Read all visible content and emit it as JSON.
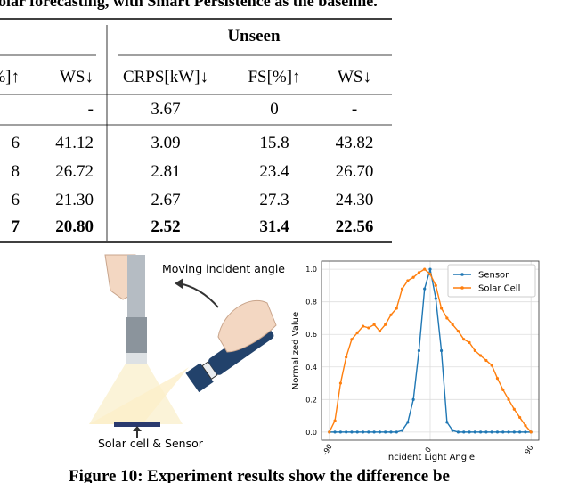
{
  "caption_top": "olar forecasting, with Smart Persistence as the baseline.",
  "table": {
    "group": "Unseen",
    "columns": [
      "%]↑",
      "WS↓",
      "CRPS[kW]↓",
      "FS[%]↑",
      "WS↓"
    ],
    "rows": [
      [
        null,
        "-",
        "3.67",
        "0",
        "-"
      ],
      [
        "6",
        "41.12",
        "3.09",
        "15.8",
        "43.82"
      ],
      [
        "8",
        "26.72",
        "2.81",
        "23.4",
        "26.70"
      ],
      [
        "6",
        "21.30",
        "2.67",
        "27.3",
        "24.30"
      ],
      [
        "7",
        "20.80",
        "2.52",
        "31.4",
        "22.56"
      ]
    ]
  },
  "illustration": {
    "motion_label": "Moving incident angle",
    "target_label": "Solar cell & Sensor"
  },
  "chart_data": {
    "type": "line",
    "xlabel": "Incident Light Angle",
    "ylabel": "Normalized Value",
    "x": [
      -90,
      -85,
      -80,
      -75,
      -70,
      -65,
      -60,
      -55,
      -50,
      -45,
      -40,
      -35,
      -30,
      -25,
      -20,
      -15,
      -10,
      -5,
      0,
      5,
      10,
      15,
      20,
      25,
      30,
      35,
      40,
      45,
      50,
      55,
      60,
      65,
      70,
      75,
      80,
      85,
      90
    ],
    "series": [
      {
        "name": "Sensor",
        "color": "#1f77b4",
        "values": [
          0,
          0,
          0,
          0,
          0,
          0,
          0,
          0,
          0,
          0,
          0,
          0,
          0,
          0.01,
          0.06,
          0.2,
          0.5,
          0.88,
          1.0,
          0.82,
          0.5,
          0.06,
          0.01,
          0,
          0,
          0,
          0,
          0,
          0,
          0,
          0,
          0,
          0,
          0,
          0,
          0,
          0
        ]
      },
      {
        "name": "Solar Cell",
        "color": "#ff7f0e",
        "values": [
          0,
          0.07,
          0.3,
          0.46,
          0.57,
          0.61,
          0.65,
          0.64,
          0.66,
          0.62,
          0.66,
          0.72,
          0.76,
          0.88,
          0.93,
          0.95,
          0.98,
          1.0,
          0.97,
          0.9,
          0.76,
          0.7,
          0.66,
          0.62,
          0.57,
          0.55,
          0.5,
          0.47,
          0.44,
          0.41,
          0.33,
          0.26,
          0.2,
          0.14,
          0.09,
          0.04,
          0
        ]
      }
    ],
    "xlim": [
      -97,
      97
    ],
    "ylim": [
      -0.05,
      1.05
    ],
    "xticks": [
      -90,
      0,
      90
    ],
    "yticks": [
      {
        "value": 0,
        "label": "0.0"
      },
      {
        "value": 0.2,
        "label": "0.2"
      },
      {
        "value": 0.4,
        "label": "0.4"
      },
      {
        "value": 0.6,
        "label": "0.6"
      },
      {
        "value": 0.8,
        "label": "0.8"
      },
      {
        "value": 1.0,
        "label": "1.0"
      }
    ],
    "grid": true,
    "legend": "upper right"
  },
  "caption": "Figure 10: Experiment results show the difference be"
}
